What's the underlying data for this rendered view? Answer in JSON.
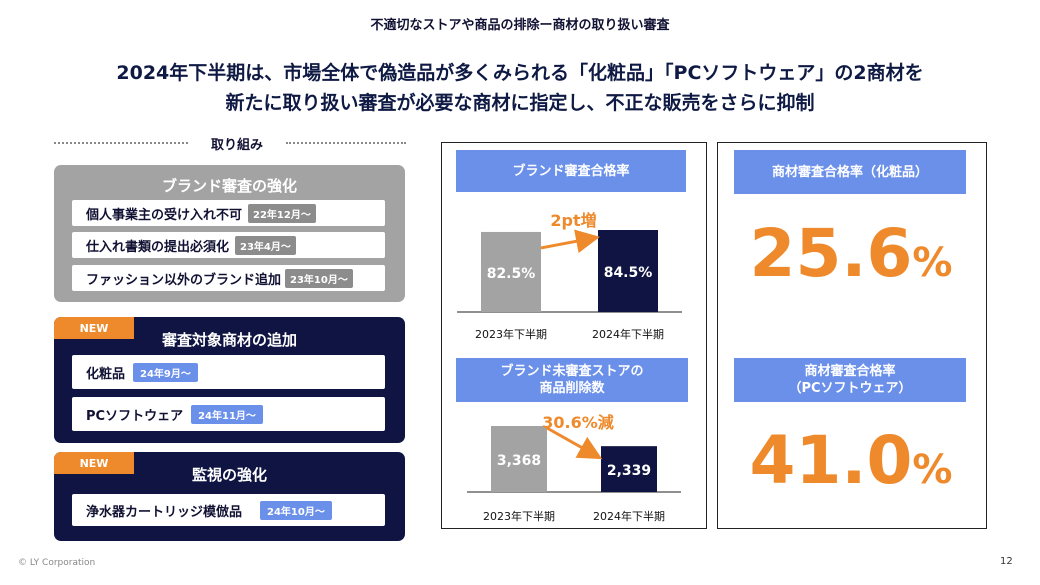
{
  "header": {
    "subtitle": "不適切なストアや商品の排除ー商材の取り扱い審査",
    "headline_line1": "2024年下半期は、市場全体で偽造品が多くみられる「化粧品」「PCソフトウェア」の2商材を",
    "headline_line2": "新たに取り扱い審査が必要な商材に指定し、不正な販売をさらに抑制"
  },
  "left": {
    "section_label": "取り組み",
    "panel1": {
      "title": "ブランド審査の強化",
      "items": [
        {
          "label": "個人事業主の受け入れ不可",
          "date": "22年12月〜"
        },
        {
          "label": "仕入れ書類の提出必須化",
          "date": "23年4月〜"
        },
        {
          "label": "ファッション以外のブランド追加",
          "date": "23年10月〜"
        }
      ]
    },
    "panel2": {
      "tag": "NEW",
      "title": "審査対象商材の追加",
      "items": [
        {
          "label": "化粧品",
          "date": "24年9月〜"
        },
        {
          "label": "PCソフトウェア",
          "date": "24年11月〜"
        }
      ]
    },
    "panel3": {
      "tag": "NEW",
      "title": "監視の強化",
      "items": [
        {
          "label": "浄水器カートリッジ模倣品",
          "date": "24年10月〜"
        }
      ]
    }
  },
  "colors": {
    "navy": "#0f1442",
    "grey_bar": "#a3a3a3",
    "accent_orange": "#ee8a2c",
    "chip_blue": "#6b90ea"
  },
  "chart_data": [
    {
      "type": "bar",
      "title": "ブランド審査合格率",
      "categories": [
        "2023年下半期",
        "2024年下半期"
      ],
      "values": [
        82.5,
        84.5
      ],
      "value_labels": [
        "82.5%",
        "84.5%"
      ],
      "annotation": "2pt増"
    },
    {
      "type": "bar",
      "title": "ブランド未審査ストアの\n商品削除数",
      "categories": [
        "2023年下半期",
        "2024年下半期"
      ],
      "values": [
        3368,
        2339
      ],
      "value_labels": [
        "3,368",
        "2,339"
      ],
      "annotation": "30.6%減"
    }
  ],
  "kpis": [
    {
      "title": "商材審査合格率（化粧品）",
      "value": "25.6",
      "unit": "%"
    },
    {
      "title": "商材審査合格率\n（PCソフトウェア）",
      "value": "41.0",
      "unit": "%"
    }
  ],
  "footer": {
    "copyright": "© LY Corporation",
    "page_number": "12"
  }
}
